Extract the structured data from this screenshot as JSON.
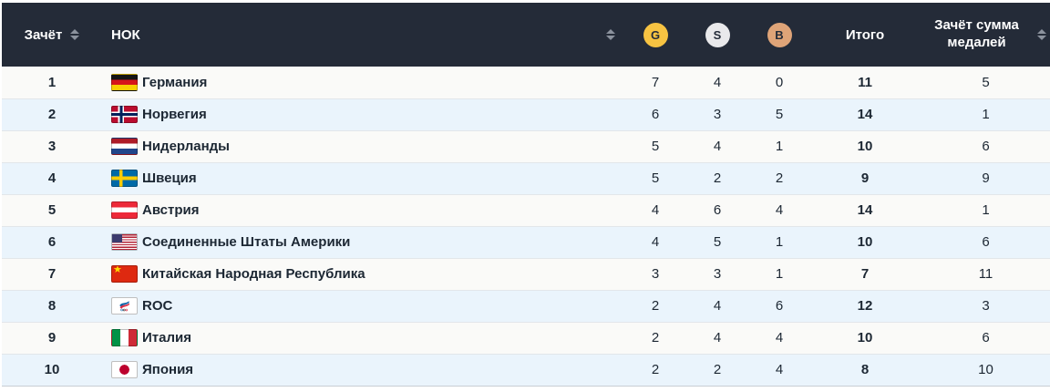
{
  "colors": {
    "header_bg": "#242b38",
    "gold": "#f7c342",
    "silver": "#e9e9eb",
    "bronze": "#dfa478",
    "row_light": "#fafaf8",
    "row_blue": "#eaf4fc",
    "text_dark": "#1c2733"
  },
  "table": {
    "headers": {
      "rank": "Зачёт",
      "noc": "НОК",
      "gold": "G",
      "silver": "S",
      "bronze": "B",
      "total": "Итого",
      "sum_rank": "Зачёт сумма медалей"
    },
    "rows": [
      {
        "rank": "1",
        "flag": "de",
        "country": "Германия",
        "gold": "7",
        "silver": "4",
        "bronze": "0",
        "total": "11",
        "sum_rank": "5"
      },
      {
        "rank": "2",
        "flag": "no",
        "country": "Норвегия",
        "gold": "6",
        "silver": "3",
        "bronze": "5",
        "total": "14",
        "sum_rank": "1"
      },
      {
        "rank": "3",
        "flag": "nl",
        "country": "Нидерланды",
        "gold": "5",
        "silver": "4",
        "bronze": "1",
        "total": "10",
        "sum_rank": "6"
      },
      {
        "rank": "4",
        "flag": "se",
        "country": "Швеция",
        "gold": "5",
        "silver": "2",
        "bronze": "2",
        "total": "9",
        "sum_rank": "9"
      },
      {
        "rank": "5",
        "flag": "at",
        "country": "Австрия",
        "gold": "4",
        "silver": "6",
        "bronze": "4",
        "total": "14",
        "sum_rank": "1"
      },
      {
        "rank": "6",
        "flag": "us",
        "country": "Соединенные Штаты Америки",
        "gold": "4",
        "silver": "5",
        "bronze": "1",
        "total": "10",
        "sum_rank": "6"
      },
      {
        "rank": "7",
        "flag": "cn",
        "country": "Китайская Народная Республика",
        "gold": "3",
        "silver": "3",
        "bronze": "1",
        "total": "7",
        "sum_rank": "11"
      },
      {
        "rank": "8",
        "flag": "roc",
        "country": "ROC",
        "gold": "2",
        "silver": "4",
        "bronze": "6",
        "total": "12",
        "sum_rank": "3"
      },
      {
        "rank": "9",
        "flag": "it",
        "country": "Италия",
        "gold": "2",
        "silver": "4",
        "bronze": "4",
        "total": "10",
        "sum_rank": "6"
      },
      {
        "rank": "10",
        "flag": "jp",
        "country": "Япония",
        "gold": "2",
        "silver": "2",
        "bronze": "4",
        "total": "8",
        "sum_rank": "10"
      }
    ]
  }
}
